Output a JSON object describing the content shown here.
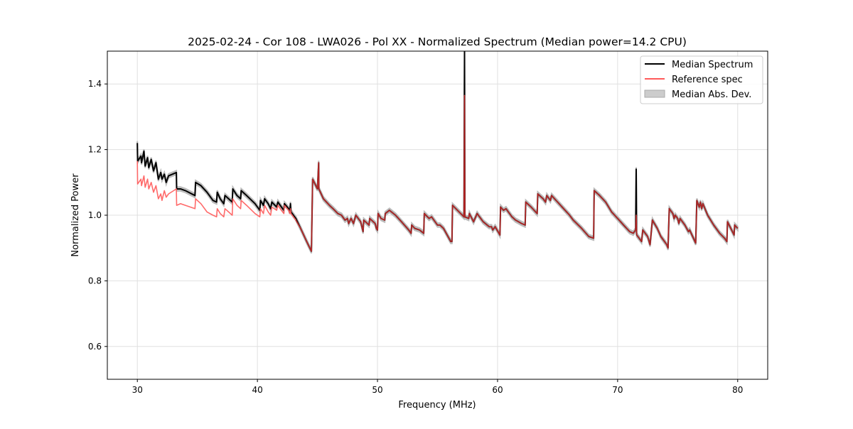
{
  "chart_data": {
    "type": "line",
    "title": "2025-02-24 - Cor 108 - LWA026 - Pol XX - Normalized Spectrum (Median power=14.2 CPU)",
    "xlabel": "Frequency (MHz)",
    "ylabel": "Normalized Power",
    "xlim": [
      27.5,
      82.5
    ],
    "ylim": [
      0.5,
      1.5
    ],
    "xticks": [
      30,
      40,
      50,
      60,
      70,
      80
    ],
    "xtick_labels": [
      "30",
      "40",
      "50",
      "60",
      "70",
      "80"
    ],
    "yticks": [
      0.6,
      0.8,
      1.0,
      1.2,
      1.4
    ],
    "ytick_labels": [
      "0.6",
      "0.8",
      "1.0",
      "1.2",
      "1.4"
    ],
    "grid": true,
    "legend_position": "top-right",
    "legend": [
      "Median Spectrum",
      "Reference spec",
      "Median Abs. Dev."
    ],
    "colors": {
      "median": "#000000",
      "reference": "#ff5a5a",
      "overlap": "#8b0000",
      "mad": "#bbbbbb"
    },
    "series": [
      {
        "name": "Median Spectrum",
        "points": [
          [
            30,
            1.22
          ],
          [
            30.02,
            1.165
          ],
          [
            30.3,
            1.18
          ],
          [
            30.35,
            1.16
          ],
          [
            30.55,
            1.195
          ],
          [
            30.65,
            1.15
          ],
          [
            30.85,
            1.175
          ],
          [
            30.95,
            1.145
          ],
          [
            31.15,
            1.17
          ],
          [
            31.35,
            1.135
          ],
          [
            31.55,
            1.16
          ],
          [
            31.75,
            1.11
          ],
          [
            31.95,
            1.13
          ],
          [
            32.05,
            1.11
          ],
          [
            32.25,
            1.125
          ],
          [
            32.4,
            1.1
          ],
          [
            32.6,
            1.12
          ],
          [
            33.25,
            1.13
          ],
          [
            33.27,
            1.08
          ],
          [
            33.6,
            1.08
          ],
          [
            34.0,
            1.075
          ],
          [
            34.8,
            1.06
          ],
          [
            34.85,
            1.1
          ],
          [
            35.3,
            1.09
          ],
          [
            35.8,
            1.07
          ],
          [
            36.3,
            1.045
          ],
          [
            36.6,
            1.04
          ],
          [
            36.65,
            1.07
          ],
          [
            36.9,
            1.05
          ],
          [
            37.2,
            1.035
          ],
          [
            37.3,
            1.06
          ],
          [
            37.6,
            1.05
          ],
          [
            37.9,
            1.04
          ],
          [
            37.95,
            1.08
          ],
          [
            38.3,
            1.06
          ],
          [
            38.6,
            1.05
          ],
          [
            38.65,
            1.075
          ],
          [
            39.1,
            1.06
          ],
          [
            39.8,
            1.035
          ],
          [
            40.2,
            1.015
          ],
          [
            40.25,
            1.045
          ],
          [
            40.5,
            1.03
          ],
          [
            40.6,
            1.05
          ],
          [
            40.9,
            1.035
          ],
          [
            41.1,
            1.02
          ],
          [
            41.2,
            1.04
          ],
          [
            41.6,
            1.025
          ],
          [
            41.7,
            1.04
          ],
          [
            42.0,
            1.025
          ],
          [
            42.2,
            1.015
          ],
          [
            42.25,
            1.035
          ],
          [
            42.6,
            1.02
          ],
          [
            42.7,
            1.01
          ],
          [
            42.75,
            1.035
          ],
          [
            42.8,
            1.01
          ],
          [
            43.2,
            0.99
          ],
          [
            43.6,
            0.96
          ],
          [
            44.1,
            0.92
          ],
          [
            44.5,
            0.89
          ],
          [
            44.6,
            1.11
          ],
          [
            45.0,
            1.08
          ],
          [
            45.1,
            1.16
          ],
          [
            45.12,
            1.08
          ],
          [
            45.5,
            1.05
          ],
          [
            46.0,
            1.03
          ],
          [
            46.3,
            1.02
          ],
          [
            46.7,
            1.005
          ],
          [
            47.0,
            1.0
          ],
          [
            47.3,
            0.985
          ],
          [
            47.5,
            0.99
          ],
          [
            47.6,
            0.975
          ],
          [
            47.8,
            0.99
          ],
          [
            48.0,
            0.975
          ],
          [
            48.2,
            1.0
          ],
          [
            48.6,
            0.98
          ],
          [
            48.8,
            0.95
          ],
          [
            48.85,
            0.985
          ],
          [
            49.3,
            0.97
          ],
          [
            49.35,
            0.99
          ],
          [
            49.8,
            0.975
          ],
          [
            49.9,
            0.96
          ],
          [
            50.0,
            0.955
          ],
          [
            50.05,
            1.005
          ],
          [
            50.3,
            0.99
          ],
          [
            50.6,
            0.985
          ],
          [
            50.65,
            1.005
          ],
          [
            51.0,
            1.015
          ],
          [
            51.5,
            1.0
          ],
          [
            52.0,
            0.98
          ],
          [
            52.6,
            0.955
          ],
          [
            52.8,
            0.945
          ],
          [
            52.85,
            0.97
          ],
          [
            53.1,
            0.96
          ],
          [
            53.5,
            0.955
          ],
          [
            53.85,
            0.945
          ],
          [
            53.9,
            1.005
          ],
          [
            54.3,
            0.99
          ],
          [
            54.5,
            0.995
          ],
          [
            55.0,
            0.97
          ],
          [
            55.2,
            0.97
          ],
          [
            55.5,
            0.96
          ],
          [
            56.1,
            0.92
          ],
          [
            56.2,
            0.92
          ],
          [
            56.25,
            1.03
          ],
          [
            56.8,
            1.01
          ],
          [
            57.2,
            0.995
          ],
          [
            57.25,
            1.5
          ],
          [
            57.28,
            0.995
          ],
          [
            57.6,
            0.99
          ],
          [
            57.65,
            1.005
          ],
          [
            58.0,
            0.98
          ],
          [
            58.3,
            1.005
          ],
          [
            58.8,
            0.98
          ],
          [
            59.3,
            0.965
          ],
          [
            59.5,
            0.965
          ],
          [
            59.6,
            0.955
          ],
          [
            59.8,
            0.965
          ],
          [
            60.2,
            0.94
          ],
          [
            60.25,
            1.025
          ],
          [
            60.5,
            1.015
          ],
          [
            60.7,
            1.02
          ],
          [
            61.2,
            0.995
          ],
          [
            61.5,
            0.985
          ],
          [
            62.0,
            0.975
          ],
          [
            62.3,
            0.97
          ],
          [
            62.35,
            1.04
          ],
          [
            62.8,
            1.025
          ],
          [
            63.3,
            1.005
          ],
          [
            63.35,
            1.065
          ],
          [
            63.8,
            1.05
          ],
          [
            64.0,
            1.04
          ],
          [
            64.1,
            1.06
          ],
          [
            64.4,
            1.045
          ],
          [
            64.5,
            1.06
          ],
          [
            65.0,
            1.04
          ],
          [
            65.5,
            1.02
          ],
          [
            66.0,
            1.0
          ],
          [
            66.3,
            0.985
          ],
          [
            67.0,
            0.96
          ],
          [
            67.6,
            0.935
          ],
          [
            68.0,
            0.93
          ],
          [
            68.05,
            1.075
          ],
          [
            68.5,
            1.06
          ],
          [
            69.0,
            1.04
          ],
          [
            69.5,
            1.01
          ],
          [
            70.0,
            0.99
          ],
          [
            70.5,
            0.97
          ],
          [
            71.0,
            0.95
          ],
          [
            71.3,
            0.945
          ],
          [
            71.5,
            0.955
          ],
          [
            71.55,
            1.14
          ],
          [
            71.58,
            0.94
          ],
          [
            72.0,
            0.92
          ],
          [
            72.1,
            0.955
          ],
          [
            72.5,
            0.935
          ],
          [
            72.7,
            0.91
          ],
          [
            72.9,
            0.985
          ],
          [
            73.3,
            0.96
          ],
          [
            73.6,
            0.935
          ],
          [
            74.1,
            0.91
          ],
          [
            74.2,
            0.9
          ],
          [
            74.3,
            1.02
          ],
          [
            74.6,
            1.005
          ],
          [
            74.7,
            0.99
          ],
          [
            74.8,
            1.0
          ],
          [
            75.0,
            0.99
          ],
          [
            75.1,
            0.975
          ],
          [
            75.2,
            0.99
          ],
          [
            75.6,
            0.97
          ],
          [
            75.9,
            0.95
          ],
          [
            76.0,
            0.955
          ],
          [
            76.5,
            0.915
          ],
          [
            76.6,
            1.045
          ],
          [
            76.8,
            1.025
          ],
          [
            76.9,
            1.04
          ],
          [
            77.0,
            1.02
          ],
          [
            77.1,
            1.035
          ],
          [
            77.5,
            1.0
          ],
          [
            78.0,
            0.97
          ],
          [
            78.5,
            0.945
          ],
          [
            78.9,
            0.93
          ],
          [
            79.1,
            0.92
          ],
          [
            79.15,
            0.98
          ],
          [
            79.7,
            0.94
          ],
          [
            79.75,
            0.97
          ],
          [
            80.0,
            0.96
          ]
        ]
      },
      {
        "name": "Reference spec",
        "low_points": [
          [
            30,
            1.165
          ],
          [
            30.02,
            1.095
          ],
          [
            30.3,
            1.11
          ],
          [
            30.35,
            1.09
          ],
          [
            30.55,
            1.12
          ],
          [
            30.65,
            1.085
          ],
          [
            30.85,
            1.11
          ],
          [
            30.95,
            1.08
          ],
          [
            31.15,
            1.1
          ],
          [
            31.35,
            1.07
          ],
          [
            31.55,
            1.09
          ],
          [
            31.75,
            1.05
          ],
          [
            31.95,
            1.065
          ],
          [
            32.05,
            1.045
          ],
          [
            32.25,
            1.075
          ],
          [
            32.4,
            1.055
          ],
          [
            32.6,
            1.065
          ],
          [
            33.25,
            1.08
          ],
          [
            33.27,
            1.03
          ],
          [
            33.6,
            1.035
          ],
          [
            34.0,
            1.03
          ],
          [
            34.8,
            1.02
          ],
          [
            34.85,
            1.05
          ],
          [
            35.3,
            1.035
          ],
          [
            35.8,
            1.01
          ],
          [
            36.3,
            1.0
          ],
          [
            36.6,
            0.995
          ],
          [
            36.65,
            1.02
          ],
          [
            36.9,
            1.005
          ],
          [
            37.2,
            0.995
          ],
          [
            37.3,
            1.02
          ],
          [
            37.6,
            1.01
          ],
          [
            37.9,
            1.0
          ],
          [
            37.95,
            1.05
          ],
          [
            38.3,
            1.03
          ],
          [
            38.6,
            1.02
          ],
          [
            38.65,
            1.045
          ],
          [
            39.1,
            1.03
          ],
          [
            39.8,
            1.005
          ],
          [
            40.2,
            0.995
          ],
          [
            40.25,
            1.02
          ],
          [
            40.5,
            1.005
          ],
          [
            40.6,
            1.03
          ],
          [
            40.9,
            1.01
          ],
          [
            41.1,
            1.0
          ],
          [
            41.2,
            1.025
          ],
          [
            41.6,
            1.015
          ],
          [
            41.7,
            1.03
          ],
          [
            42.0,
            1.015
          ],
          [
            42.2,
            1.005
          ],
          [
            42.25,
            1.03
          ],
          [
            42.6,
            1.015
          ],
          [
            42.7,
            1.005
          ],
          [
            42.75,
            1.02
          ],
          [
            42.8,
            1.005
          ],
          [
            43.2,
            0.985
          ]
        ],
        "follows_median_above": 43.2,
        "overrides": [
          [
            57.25,
            1.365
          ],
          [
            71.55,
            1.0
          ]
        ]
      }
    ],
    "mad_halfwidth": 0.006
  }
}
